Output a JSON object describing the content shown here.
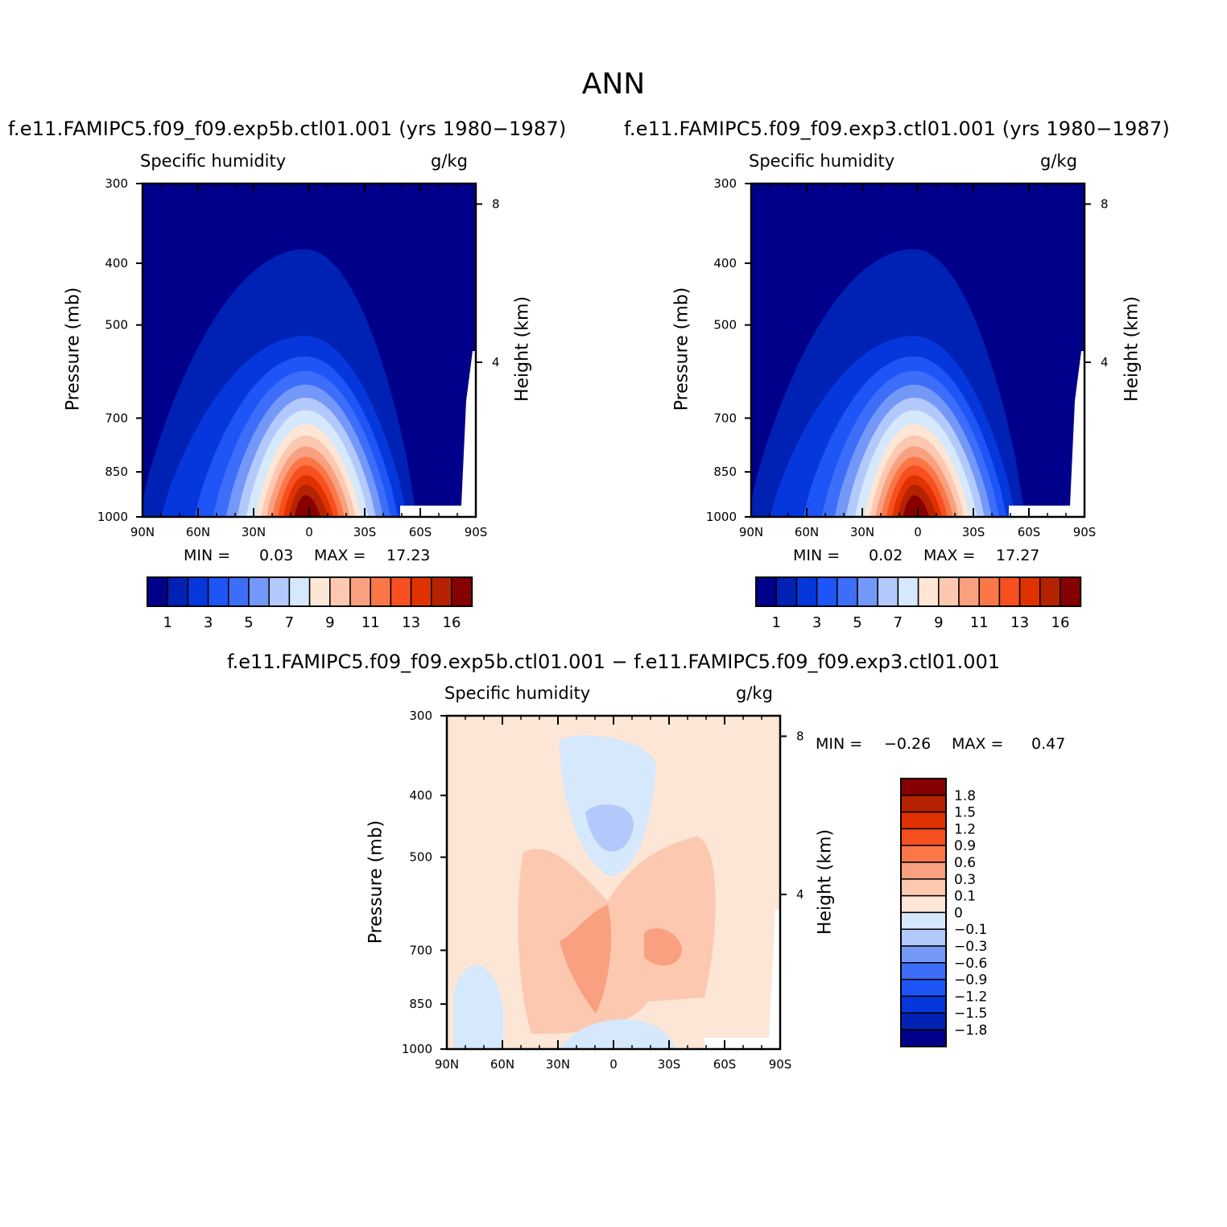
{
  "main_title": "ANN",
  "panels": [
    {
      "title": "f.e11.FAMIPC5.f09_f09.exp5b.ctl01.001 (yrs 1980−1987)",
      "variable": "Specific humidity",
      "units": "g/kg",
      "min_label": "MIN =",
      "min_value": "0.03",
      "max_label": "MAX =",
      "max_value": "17.23"
    },
    {
      "title": "f.e11.FAMIPC5.f09_f09.exp3.ctl01.001 (yrs 1980−1987)",
      "variable": "Specific humidity",
      "units": "g/kg",
      "min_label": "MIN =",
      "min_value": "0.02",
      "max_label": "MAX =",
      "max_value": "17.27"
    },
    {
      "title": "f.e11.FAMIPC5.f09_f09.exp5b.ctl01.001 − f.e11.FAMIPC5.f09_f09.exp3.ctl01.001",
      "variable": "Specific humidity",
      "units": "g/kg",
      "min_label": "MIN =",
      "min_value": "−0.26",
      "max_label": "MAX =",
      "max_value": "0.47"
    }
  ],
  "chart_data": [
    {
      "type": "heatmap",
      "title": "Specific humidity",
      "units": "g/kg",
      "xlabel": "",
      "ylabel": "Pressure (mb)",
      "ylabel_right": "Height (km)",
      "x_ticks": [
        "90N",
        "60N",
        "30N",
        "0",
        "30S",
        "60S",
        "90S"
      ],
      "x_tick_values": [
        90,
        60,
        30,
        0,
        -30,
        -60,
        -90
      ],
      "xlim": [
        90,
        -90
      ],
      "y_ticks": [
        "300",
        "400",
        "500",
        "700",
        "850",
        "1000"
      ],
      "y_tick_values": [
        300,
        400,
        500,
        700,
        850,
        1000
      ],
      "ylim": [
        1000,
        300
      ],
      "y_scale": "log",
      "right_ticks": [
        "8",
        "4"
      ],
      "right_tick_values_km": [
        8,
        4
      ],
      "contour_levels": [
        1,
        2,
        3,
        4,
        5,
        6,
        7,
        8,
        9,
        10,
        11,
        12,
        13,
        14,
        16
      ],
      "colorbar_labels": [
        "1",
        "3",
        "5",
        "7",
        "9",
        "11",
        "13",
        "16"
      ],
      "min": 0.03,
      "max": 17.23
    },
    {
      "type": "heatmap",
      "title": "Specific humidity",
      "units": "g/kg",
      "xlabel": "",
      "ylabel": "Pressure (mb)",
      "ylabel_right": "Height (km)",
      "x_ticks": [
        "90N",
        "60N",
        "30N",
        "0",
        "30S",
        "60S",
        "90S"
      ],
      "x_tick_values": [
        90,
        60,
        30,
        0,
        -30,
        -60,
        -90
      ],
      "xlim": [
        90,
        -90
      ],
      "y_ticks": [
        "300",
        "400",
        "500",
        "700",
        "850",
        "1000"
      ],
      "y_tick_values": [
        300,
        400,
        500,
        700,
        850,
        1000
      ],
      "ylim": [
        1000,
        300
      ],
      "y_scale": "log",
      "right_ticks": [
        "8",
        "4"
      ],
      "right_tick_values_km": [
        8,
        4
      ],
      "contour_levels": [
        1,
        2,
        3,
        4,
        5,
        6,
        7,
        8,
        9,
        10,
        11,
        12,
        13,
        14,
        16
      ],
      "colorbar_labels": [
        "1",
        "3",
        "5",
        "7",
        "9",
        "11",
        "13",
        "16"
      ],
      "min": 0.02,
      "max": 17.27
    },
    {
      "type": "heatmap",
      "title": "Specific humidity",
      "units": "g/kg",
      "xlabel": "",
      "ylabel": "Pressure (mb)",
      "ylabel_right": "Height (km)",
      "x_ticks": [
        "90N",
        "60N",
        "30N",
        "0",
        "30S",
        "60S",
        "90S"
      ],
      "x_tick_values": [
        90,
        60,
        30,
        0,
        -30,
        -60,
        -90
      ],
      "xlim": [
        90,
        -90
      ],
      "y_ticks": [
        "300",
        "400",
        "500",
        "700",
        "850",
        "1000"
      ],
      "y_tick_values": [
        300,
        400,
        500,
        700,
        850,
        1000
      ],
      "ylim": [
        1000,
        300
      ],
      "y_scale": "log",
      "right_ticks": [
        "8",
        "4"
      ],
      "right_tick_values_km": [
        8,
        4
      ],
      "contour_levels": [
        -1.8,
        -1.5,
        -1.2,
        -0.9,
        -0.6,
        -0.3,
        -0.1,
        0,
        0.1,
        0.3,
        0.6,
        0.9,
        1.2,
        1.5,
        1.8
      ],
      "colorbar_labels": [
        "1.8",
        "1.5",
        "1.2",
        "0.9",
        "0.6",
        "0.3",
        "0.1",
        "0",
        "−0.1",
        "−0.3",
        "−0.6",
        "−0.9",
        "−1.2",
        "−1.5",
        "−1.8"
      ],
      "min": -0.26,
      "max": 0.47
    }
  ],
  "colors": {
    "abs_palette": [
      "#00008b",
      "#0022b4",
      "#0537dd",
      "#1e55f7",
      "#3d6ef9",
      "#7498f8",
      "#b3c9fb",
      "#d6e8fb",
      "#fde6d6",
      "#fdc8b0",
      "#f8a080",
      "#fb7747",
      "#f74f1f",
      "#e03200",
      "#b52200",
      "#870000"
    ],
    "diff_palette_top_to_bottom": [
      "#870000",
      "#b52200",
      "#e03200",
      "#f74f1f",
      "#fb7747",
      "#f8a080",
      "#fdc8b0",
      "#fde6d6",
      "#d6e8fb",
      "#b3c9fb",
      "#7498f8",
      "#3d6ef9",
      "#1e55f7",
      "#0537dd",
      "#0022b4",
      "#00008b"
    ]
  }
}
